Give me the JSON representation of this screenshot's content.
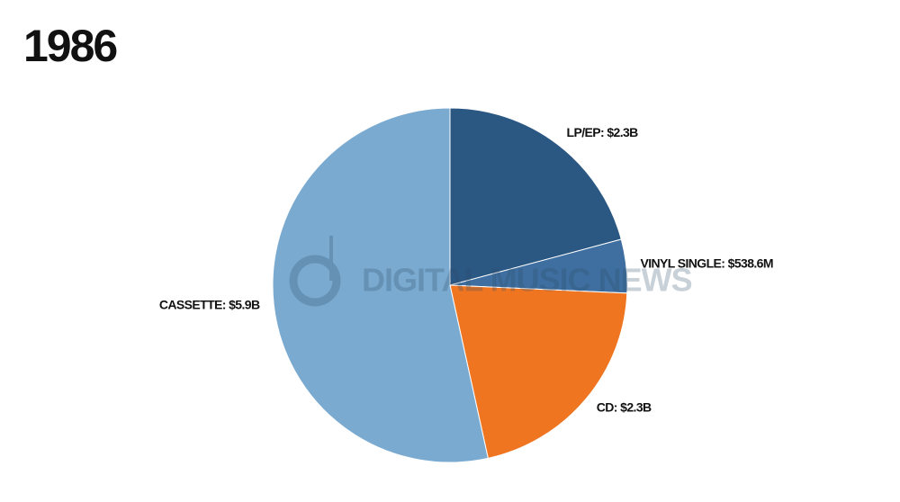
{
  "chart_data": {
    "type": "pie",
    "title": "1986",
    "watermark": "DIGITAL MUSIC NEWS",
    "categories": [
      "LP/EP",
      "VINYL SINGLE",
      "CD",
      "CASSETTE"
    ],
    "values": [
      2.3,
      0.5386,
      2.3,
      5.9
    ],
    "value_labels": [
      "LP/EP: $2.3B",
      "VINYL SINGLE: $538.6M",
      "CD: $2.3B",
      "CASSETTE: $5.9B"
    ],
    "colors": [
      "#2b5783",
      "#3f6fa0",
      "#ef7521",
      "#7aaad0"
    ]
  }
}
